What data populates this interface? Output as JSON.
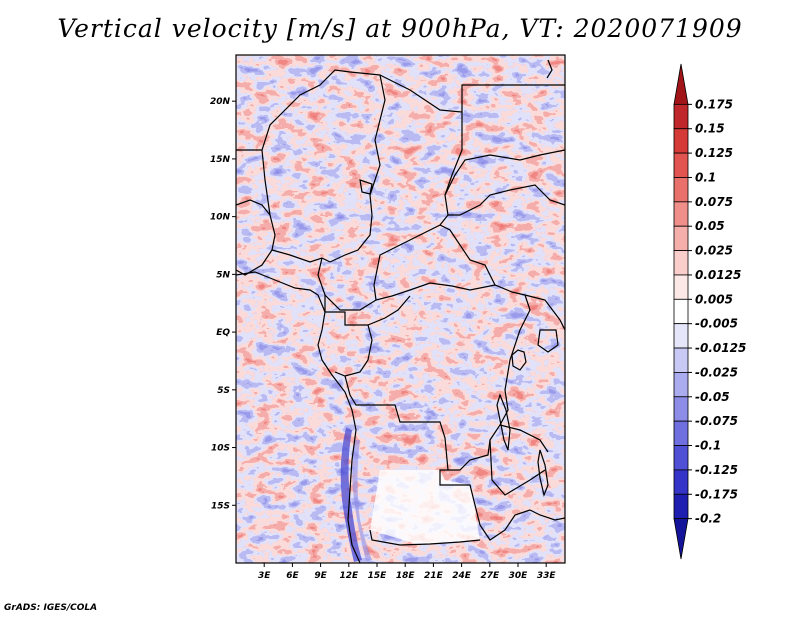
{
  "title": "Vertical velocity [m/s] at 900hPa, VT: 2020071909",
  "credit": "GrADS: IGES/COLA",
  "map": {
    "lon_range": [
      0,
      35
    ],
    "lat_range": [
      -20,
      24
    ],
    "lat_ticks": [
      {
        "value": 20,
        "label": "20N"
      },
      {
        "value": 15,
        "label": "15N"
      },
      {
        "value": 10,
        "label": "10N"
      },
      {
        "value": 5,
        "label": "5N"
      },
      {
        "value": 0,
        "label": "EQ"
      },
      {
        "value": -5,
        "label": "5S"
      },
      {
        "value": -10,
        "label": "10S"
      },
      {
        "value": -15,
        "label": "15S"
      }
    ],
    "lon_ticks": [
      {
        "value": 3,
        "label": "3E"
      },
      {
        "value": 6,
        "label": "6E"
      },
      {
        "value": 9,
        "label": "9E"
      },
      {
        "value": 12,
        "label": "12E"
      },
      {
        "value": 15,
        "label": "15E"
      },
      {
        "value": 18,
        "label": "18E"
      },
      {
        "value": 21,
        "label": "21E"
      },
      {
        "value": 24,
        "label": "24E"
      },
      {
        "value": 27,
        "label": "27E"
      },
      {
        "value": 30,
        "label": "30E"
      },
      {
        "value": 33,
        "label": "33E"
      }
    ]
  },
  "colorbar": {
    "labels": [
      "0.175",
      "0.15",
      "0.125",
      "0.1",
      "0.075",
      "0.05",
      "0.025",
      "0.0125",
      "0.005",
      "-0.005",
      "-0.0125",
      "-0.025",
      "-0.05",
      "-0.075",
      "-0.1",
      "-0.125",
      "-0.175",
      "-0.2"
    ],
    "colors": [
      "#a11418",
      "#c0272a",
      "#d63a37",
      "#e2544f",
      "#ea716b",
      "#f08f8a",
      "#f5aeaa",
      "#f9cecb",
      "#fce8e6",
      "#ffffff",
      "#e6e6fb",
      "#c9c9f5",
      "#ababef",
      "#8d8de8",
      "#6f6fe0",
      "#5050d6",
      "#3434c8",
      "#1e1eb0",
      "#14149a"
    ]
  }
}
